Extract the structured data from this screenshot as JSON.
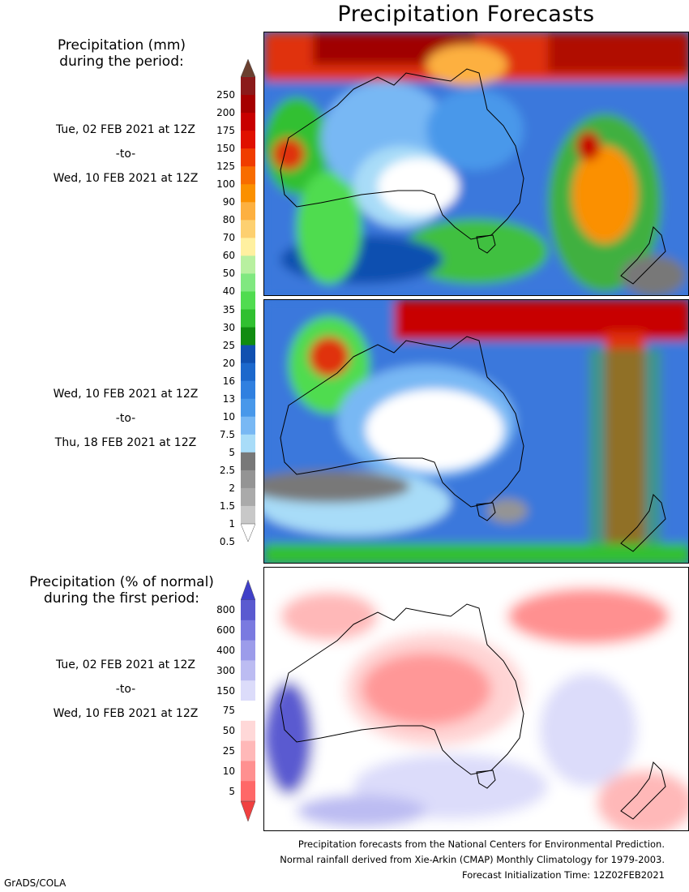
{
  "title": "Precipitation Forecasts",
  "legend1": {
    "heading_line1": "Precipitation (mm)",
    "heading_line2": "during the period:",
    "ticks": [
      "250",
      "200",
      "175",
      "150",
      "125",
      "100",
      "90",
      "80",
      "70",
      "60",
      "50",
      "40",
      "35",
      "30",
      "25",
      "20",
      "16",
      "13",
      "10",
      "7.5",
      "5",
      "2.5",
      "2",
      "1.5",
      "1",
      "0.5"
    ],
    "colors": [
      "#8b1a1a",
      "#a50000",
      "#c80000",
      "#e01000",
      "#f03c00",
      "#f86c00",
      "#fb9000",
      "#fdb040",
      "#fdd070",
      "#fff0a0",
      "#b8f0a0",
      "#80e880",
      "#50dc50",
      "#30c030",
      "#108c10",
      "#1050b0",
      "#1c68cc",
      "#3080e0",
      "#4898ea",
      "#78b8f4",
      "#a8dcf8",
      "#787878",
      "#949494",
      "#aaaaaa",
      "#c8c8c8"
    ],
    "top_arrow_color": "#6b4030"
  },
  "period1": {
    "start": "Tue, 02 FEB 2021 at 12Z",
    "to": "-to-",
    "end": "Wed, 10 FEB 2021 at 12Z"
  },
  "period2": {
    "start": "Wed, 10 FEB 2021 at 12Z",
    "to": "-to-",
    "end": "Thu, 18 FEB 2021 at 12Z"
  },
  "legend2": {
    "heading_line1": "Precipitation (% of normal)",
    "heading_line2": "during the first period:",
    "ticks": [
      "800",
      "600",
      "400",
      "300",
      "150",
      "75",
      "50",
      "25",
      "10",
      "5"
    ],
    "colors": [
      "#5a5ad0",
      "#7a7ae0",
      "#9c9cea",
      "#bcbcf2",
      "#dcdcfa",
      "#ffffff",
      "#ffd8d8",
      "#ffb8b8",
      "#ff9090",
      "#ff6868"
    ],
    "top_arrow_color": "#4040c8",
    "bottom_arrow_color": "#f04040"
  },
  "period3": {
    "start": "Tue, 02 FEB 2021 at 12Z",
    "to": "-to-",
    "end": "Wed, 10 FEB 2021 at 12Z"
  },
  "footer": {
    "line1": "Precipitation forecasts from the National Centers for Environmental Prediction.",
    "line2": "Normal rainfall derived from Xie-Arkin (CMAP) Monthly Climatology for 1979-2003.",
    "line3": "Forecast Initialization Time: 12Z02FEB2021"
  },
  "credit": "GrADS/COLA"
}
